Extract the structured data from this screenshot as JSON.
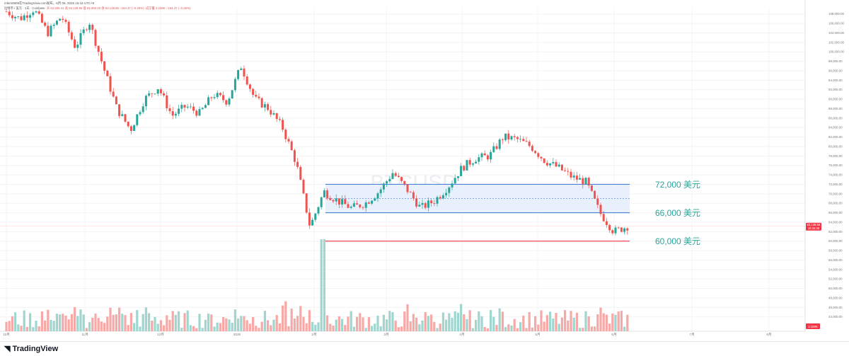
{
  "header": {
    "publish_line": "mlem0808在TradingView.com发布，6月 06, 2026 16:16 UTC+8",
    "symbol_line": "比特币 / 美元 · 1天 · Coinbase",
    "ohlc": "开 62,565.41  高 63,138.56  低 61,950.00  收 63,138.56  −164.37 (−0.26%)",
    "volume": "成交量 3.159K  −164.37 (−0.26%)"
  },
  "watermark": {
    "symbol": "BTCUSD",
    "name": "比特币 / 美元"
  },
  "price_tag": {
    "price": "63,138.56",
    "countdown": "15:42:45"
  },
  "volume_tag": "3.159K",
  "logo": "TradingView",
  "annotations": [
    {
      "label": "72,000 美元",
      "price": 72000,
      "color": "#26a69a"
    },
    {
      "label": "66,000 美元",
      "price": 66000,
      "color": "#26a69a"
    },
    {
      "label": "60,000 美元",
      "price": 60000,
      "color": "#26a69a"
    }
  ],
  "colors": {
    "up": "#26a69a",
    "down": "#ef5350",
    "zone_fill": "#e8f0fc",
    "zone_line": "#4a7fd6",
    "support": "#f23645"
  },
  "chart_data": {
    "type": "candlestick",
    "series_name": "BTCUSD",
    "ylim": [
      42000,
      109000
    ],
    "y_ticks": [
      "108,000.00",
      "106,000.00",
      "104,000.00",
      "102,000.00",
      "100,000.00",
      "98,000.00",
      "96,000.00",
      "94,000.00",
      "92,000.00",
      "90,000.00",
      "88,000.00",
      "86,000.00",
      "84,000.00",
      "82,000.00",
      "80,000.00",
      "78,000.00",
      "76,000.00",
      "74,000.00",
      "72,000.00",
      "70,000.00",
      "68,000.00",
      "66,000.00",
      "64,000.00",
      "62,000.00",
      "60,000.00",
      "58,000.00",
      "56,000.00",
      "54,000.00",
      "52,000.00",
      "50,000.00",
      "48,000.00",
      "46,000.00",
      "44,000.00"
    ],
    "x_ticks": [
      "10月",
      "11月",
      "12月",
      "2026",
      "2月",
      "3月",
      "4月",
      "5月",
      "6月",
      "7月",
      "8月"
    ],
    "zone": {
      "upper": 72000,
      "lower": 66000,
      "mid": 69000,
      "start": "2月",
      "end": "6月"
    },
    "support": {
      "price": 60000
    },
    "path": [
      [
        "10月",
        108500
      ],
      [
        "10月+",
        107000
      ],
      [
        "10/20",
        109000
      ],
      [
        "10/28",
        104000
      ],
      [
        "11月",
        107500
      ],
      [
        "11/05",
        101000
      ],
      [
        "11/10",
        106500
      ],
      [
        "11/15",
        97000
      ],
      [
        "11/22",
        88000
      ],
      [
        "11/28",
        83500
      ],
      [
        "12月",
        90000
      ],
      [
        "12/08",
        92500
      ],
      [
        "12/15",
        86500
      ],
      [
        "12/22",
        88500
      ],
      [
        "12/28",
        87000
      ],
      [
        "2026",
        91000
      ],
      [
        "1/10",
        89500
      ],
      [
        "1/14",
        97000
      ],
      [
        "1/20",
        90000
      ],
      [
        "1/25",
        88000
      ],
      [
        "2月",
        84000
      ],
      [
        "2/04",
        76500
      ],
      [
        "2/06",
        63000
      ],
      [
        "2/08",
        70500
      ],
      [
        "2/15",
        68500
      ],
      [
        "2/22",
        67000
      ],
      [
        "3月",
        68000
      ],
      [
        "3/10",
        70500
      ],
      [
        "3/15",
        74500
      ],
      [
        "3/22",
        71000
      ],
      [
        "3/28",
        67000
      ],
      [
        "4月",
        68500
      ],
      [
        "4/08",
        71500
      ],
      [
        "4/15",
        75500
      ],
      [
        "4/22",
        77500
      ],
      [
        "5月",
        78000
      ],
      [
        "5/05",
        82000
      ],
      [
        "5/10",
        81500
      ],
      [
        "5/15",
        80000
      ],
      [
        "5/20",
        77000
      ],
      [
        "5/25",
        75500
      ],
      [
        "5/28",
        73500
      ],
      [
        "5/31",
        72500
      ],
      [
        "6/02",
        66000
      ],
      [
        "6/04",
        62000
      ],
      [
        "6/06",
        63138.56
      ]
    ]
  }
}
